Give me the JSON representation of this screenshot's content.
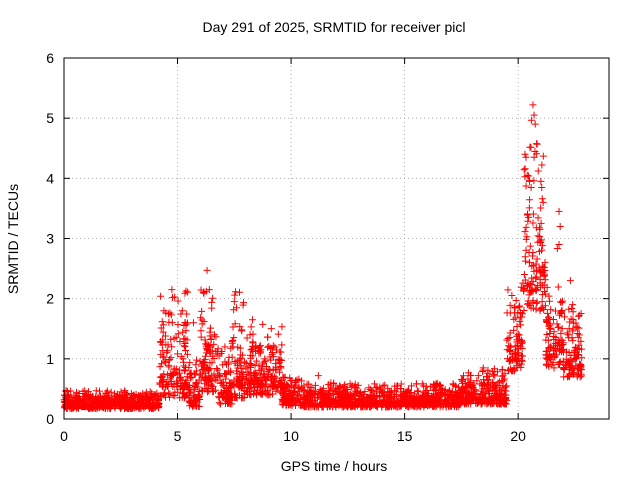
{
  "chart_data": {
    "type": "scatter",
    "title": "Day 291 of 2025, SRMTID for receiver picl",
    "xlabel": "GPS time / hours",
    "ylabel": "SRMTID / TECUs",
    "xlim": [
      0,
      24
    ],
    "ylim": [
      0,
      6
    ],
    "xticks": [
      0,
      5,
      10,
      15,
      20
    ],
    "yticks": [
      0,
      1,
      2,
      3,
      4,
      5,
      6
    ],
    "grid": true,
    "marker": "+",
    "series_color": "#ff0000",
    "series": [
      {
        "name": "SRMTID",
        "profile": [
          {
            "start": 0.0,
            "end": 4.2,
            "base": 0.25,
            "spread": 0.15
          },
          {
            "start": 4.2,
            "end": 5.5,
            "base": 0.8,
            "spread": 0.9
          },
          {
            "start": 5.5,
            "end": 6.0,
            "base": 0.4,
            "spread": 0.4
          },
          {
            "start": 6.0,
            "end": 6.8,
            "base": 0.9,
            "spread": 0.9
          },
          {
            "start": 6.8,
            "end": 7.4,
            "base": 0.5,
            "spread": 0.5
          },
          {
            "start": 7.4,
            "end": 8.0,
            "base": 0.8,
            "spread": 0.9
          },
          {
            "start": 8.0,
            "end": 9.6,
            "base": 0.7,
            "spread": 0.6
          },
          {
            "start": 9.6,
            "end": 10.5,
            "base": 0.35,
            "spread": 0.25
          },
          {
            "start": 10.5,
            "end": 17.5,
            "base": 0.3,
            "spread": 0.2
          },
          {
            "start": 17.5,
            "end": 19.5,
            "base": 0.4,
            "spread": 0.3
          },
          {
            "start": 19.5,
            "end": 20.2,
            "base": 1.2,
            "spread": 0.8
          },
          {
            "start": 20.2,
            "end": 21.2,
            "base": 2.6,
            "spread": 1.6
          },
          {
            "start": 21.2,
            "end": 21.7,
            "base": 1.2,
            "spread": 0.7
          },
          {
            "start": 21.7,
            "end": 22.0,
            "base": 1.5,
            "spread": 1.2
          },
          {
            "start": 22.0,
            "end": 22.8,
            "base": 1.0,
            "spread": 0.6
          }
        ],
        "peaks": [
          {
            "x": 4.4,
            "y": 1.8
          },
          {
            "x": 4.6,
            "y": 1.75
          },
          {
            "x": 4.75,
            "y": 2.15
          },
          {
            "x": 5.7,
            "y": 1.6
          },
          {
            "x": 6.3,
            "y": 2.47
          },
          {
            "x": 6.4,
            "y": 2.15
          },
          {
            "x": 7.5,
            "y": 1.95
          },
          {
            "x": 7.6,
            "y": 1.85
          },
          {
            "x": 8.3,
            "y": 1.65
          },
          {
            "x": 11.2,
            "y": 0.72
          },
          {
            "x": 15.3,
            "y": 0.55
          },
          {
            "x": 17.9,
            "y": 0.72
          },
          {
            "x": 20.3,
            "y": 4.4
          },
          {
            "x": 20.4,
            "y": 4.05
          },
          {
            "x": 20.5,
            "y": 3.95
          },
          {
            "x": 20.65,
            "y": 5.22
          },
          {
            "x": 20.7,
            "y": 5.05
          },
          {
            "x": 20.75,
            "y": 4.9
          },
          {
            "x": 20.7,
            "y": 4.35
          },
          {
            "x": 21.0,
            "y": 3.95
          },
          {
            "x": 21.1,
            "y": 3.6
          },
          {
            "x": 21.8,
            "y": 3.45
          },
          {
            "x": 21.85,
            "y": 3.2
          },
          {
            "x": 21.8,
            "y": 2.9
          },
          {
            "x": 22.3,
            "y": 2.3
          },
          {
            "x": 22.4,
            "y": 1.9
          }
        ]
      }
    ]
  }
}
